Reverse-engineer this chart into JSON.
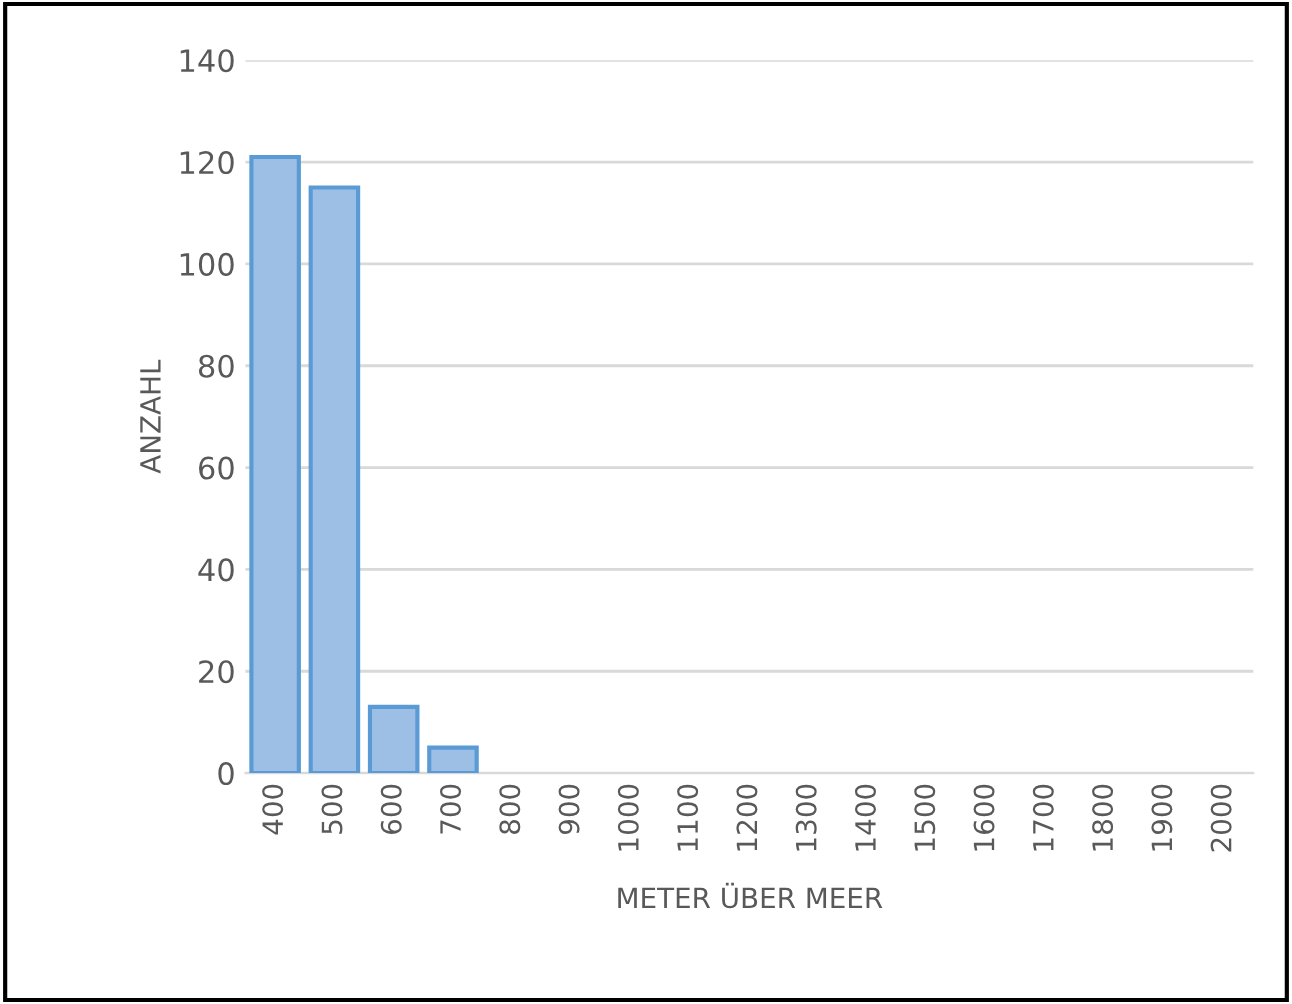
{
  "chart_data": {
    "type": "bar",
    "xlabel": "METER ÜBER MEER",
    "ylabel": "ANZAHL",
    "categories": [
      "400",
      "500",
      "600",
      "700",
      "800",
      "900",
      "1000",
      "1100",
      "1200",
      "1300",
      "1400",
      "1500",
      "1600",
      "1700",
      "1800",
      "1900",
      "2000"
    ],
    "values": [
      121,
      115,
      13,
      5,
      0,
      0,
      0,
      0,
      0,
      0,
      0,
      0,
      0,
      0,
      0,
      0,
      0
    ],
    "color": "#9dbfe6",
    "ylim": [
      0,
      140
    ],
    "yticks": [
      0,
      20,
      40,
      60,
      80,
      100,
      120,
      140
    ],
    "grid": "y",
    "legend": false
  }
}
